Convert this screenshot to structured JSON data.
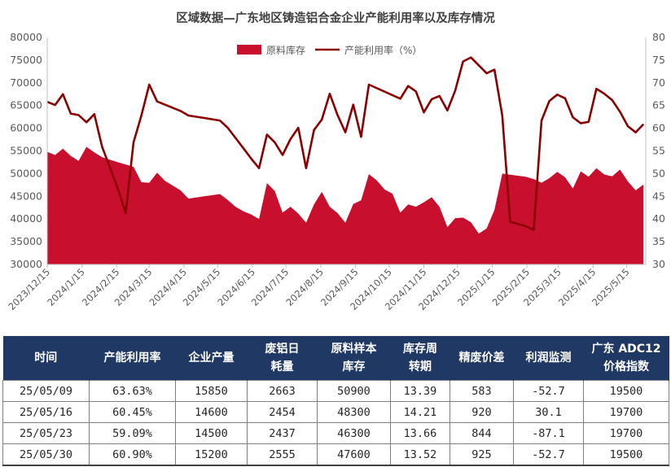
{
  "chart_data": {
    "type": "area+line",
    "title": "区域数据—广东地区铸造铝合金企业产能利用率以及库存情况",
    "legend": [
      "原料库存",
      "产能利用率（%）"
    ],
    "legend_position": "top-center",
    "colors": {
      "area": "#c8102e",
      "line": "#8b0000"
    },
    "y_left": {
      "min": 30000,
      "max": 80000,
      "step": 5000,
      "ticks": [
        "30000",
        "35000",
        "40000",
        "45000",
        "50000",
        "55000",
        "60000",
        "65000",
        "70000",
        "75000",
        "80000"
      ]
    },
    "y_right": {
      "min": 30,
      "max": 80,
      "step": 5,
      "ticks": [
        "30",
        "35",
        "40",
        "45",
        "50",
        "55",
        "60",
        "65",
        "70",
        "75",
        "80"
      ]
    },
    "x_ticks": [
      "2023/12/15",
      "2024/1/15",
      "2024/2/15",
      "2024/3/15",
      "2024/4/15",
      "2024/5/15",
      "2024/6/15",
      "2024/7/15",
      "2024/8/15",
      "2024/9/15",
      "2024/10/15",
      "2024/11/15",
      "2024/12/15",
      "2025/1/15",
      "2025/2/15",
      "2025/3/15",
      "2025/4/15",
      "2025/5/15"
    ],
    "x_range": [
      "2023/12/15",
      "2025/6/01"
    ],
    "series": [
      {
        "name": "原料库存",
        "kind": "area",
        "points": [
          [
            "2023-12-15",
            54800
          ],
          [
            "2023-12-22",
            54100
          ],
          [
            "2023-12-29",
            55500
          ],
          [
            "2024-01-05",
            53900
          ],
          [
            "2024-01-12",
            52800
          ],
          [
            "2024-01-19",
            55900
          ],
          [
            "2024-01-26",
            54700
          ],
          [
            "2024-02-02",
            53600
          ],
          [
            "2024-02-16",
            52500
          ],
          [
            "2024-03-01",
            51500
          ],
          [
            "2024-03-08",
            48100
          ],
          [
            "2024-03-15",
            48000
          ],
          [
            "2024-03-22",
            50200
          ],
          [
            "2024-03-29",
            48400
          ],
          [
            "2024-04-12",
            46300
          ],
          [
            "2024-04-19",
            44500
          ],
          [
            "2024-05-17",
            45500
          ],
          [
            "2024-05-24",
            44200
          ],
          [
            "2024-05-31",
            42700
          ],
          [
            "2024-06-07",
            41700
          ],
          [
            "2024-06-14",
            41000
          ],
          [
            "2024-06-21",
            40000
          ],
          [
            "2024-06-28",
            47900
          ],
          [
            "2024-07-05",
            46200
          ],
          [
            "2024-07-12",
            41400
          ],
          [
            "2024-07-19",
            42700
          ],
          [
            "2024-07-26",
            41200
          ],
          [
            "2024-08-02",
            39200
          ],
          [
            "2024-08-09",
            43200
          ],
          [
            "2024-08-16",
            46000
          ],
          [
            "2024-08-23",
            42700
          ],
          [
            "2024-08-30",
            41300
          ],
          [
            "2024-09-06",
            39200
          ],
          [
            "2024-09-13",
            43300
          ],
          [
            "2024-09-20",
            44100
          ],
          [
            "2024-09-27",
            49900
          ],
          [
            "2024-10-04",
            48500
          ],
          [
            "2024-10-11",
            46500
          ],
          [
            "2024-10-18",
            45600
          ],
          [
            "2024-10-25",
            41400
          ],
          [
            "2024-11-01",
            43200
          ],
          [
            "2024-11-08",
            42700
          ],
          [
            "2024-11-15",
            43700
          ],
          [
            "2024-11-22",
            44800
          ],
          [
            "2024-11-29",
            42700
          ],
          [
            "2024-12-06",
            38200
          ],
          [
            "2024-12-13",
            40200
          ],
          [
            "2024-12-20",
            40300
          ],
          [
            "2024-12-27",
            39300
          ],
          [
            "2025-01-03",
            36800
          ],
          [
            "2025-01-10",
            37900
          ],
          [
            "2025-01-17",
            42000
          ],
          [
            "2025-01-24",
            50000
          ],
          [
            "2025-02-14",
            49300
          ],
          [
            "2025-02-21",
            48800
          ],
          [
            "2025-02-28",
            48000
          ],
          [
            "2025-03-07",
            49000
          ],
          [
            "2025-03-14",
            50400
          ],
          [
            "2025-03-21",
            49200
          ],
          [
            "2025-03-28",
            46700
          ],
          [
            "2025-04-04",
            50500
          ],
          [
            "2025-04-11",
            49300
          ],
          [
            "2025-04-18",
            51200
          ],
          [
            "2025-04-25",
            49800
          ],
          [
            "2025-05-02",
            49400
          ],
          [
            "2025-05-09",
            50900
          ],
          [
            "2025-05-16",
            48300
          ],
          [
            "2025-05-23",
            46300
          ],
          [
            "2025-05-30",
            47600
          ]
        ]
      },
      {
        "name": "产能利用率（%）",
        "kind": "line",
        "points": [
          [
            "2023-12-15",
            65.8
          ],
          [
            "2023-12-22",
            65.1
          ],
          [
            "2023-12-29",
            67.5
          ],
          [
            "2024-01-05",
            63.2
          ],
          [
            "2024-01-12",
            62.9
          ],
          [
            "2024-01-19",
            61.3
          ],
          [
            "2024-01-26",
            63.1
          ],
          [
            "2024-02-02",
            55.9
          ],
          [
            "2024-02-09",
            51.3
          ],
          [
            "2024-02-16",
            46.7
          ],
          [
            "2024-02-23",
            41.3
          ],
          [
            "2024-03-01",
            56.9
          ],
          [
            "2024-03-08",
            62.8
          ],
          [
            "2024-03-15",
            69.6
          ],
          [
            "2024-03-22",
            65.9
          ],
          [
            "2024-04-12",
            63.8
          ],
          [
            "2024-04-19",
            62.8
          ],
          [
            "2024-05-17",
            61.7
          ],
          [
            "2024-05-24",
            60.1
          ],
          [
            "2024-06-07",
            55.6
          ],
          [
            "2024-06-14",
            53.3
          ],
          [
            "2024-06-21",
            51.2
          ],
          [
            "2024-06-28",
            58.6
          ],
          [
            "2024-07-05",
            56.9
          ],
          [
            "2024-07-12",
            54.1
          ],
          [
            "2024-07-19",
            57.6
          ],
          [
            "2024-07-26",
            60.1
          ],
          [
            "2024-08-02",
            51.2
          ],
          [
            "2024-08-09",
            59.6
          ],
          [
            "2024-08-16",
            61.9
          ],
          [
            "2024-08-23",
            67.6
          ],
          [
            "2024-08-30",
            62.9
          ],
          [
            "2024-09-06",
            59.1
          ],
          [
            "2024-09-13",
            65.2
          ],
          [
            "2024-09-20",
            58.1
          ],
          [
            "2024-09-27",
            69.6
          ],
          [
            "2024-10-25",
            66.5
          ],
          [
            "2024-11-01",
            69.3
          ],
          [
            "2024-11-08",
            68.1
          ],
          [
            "2024-11-15",
            63.5
          ],
          [
            "2024-11-22",
            66.4
          ],
          [
            "2024-11-29",
            67.1
          ],
          [
            "2024-12-06",
            63.9
          ],
          [
            "2024-12-13",
            68.3
          ],
          [
            "2024-12-20",
            74.7
          ],
          [
            "2024-12-27",
            75.6
          ],
          [
            "2025-01-10",
            72.1
          ],
          [
            "2025-01-17",
            72.9
          ],
          [
            "2025-01-24",
            62.8
          ],
          [
            "2025-01-31",
            39.4
          ],
          [
            "2025-02-14",
            38.4
          ],
          [
            "2025-02-21",
            37.6
          ],
          [
            "2025-02-28",
            61.7
          ],
          [
            "2025-03-07",
            66.0
          ],
          [
            "2025-03-14",
            67.4
          ],
          [
            "2025-03-21",
            66.6
          ],
          [
            "2025-03-28",
            62.4
          ],
          [
            "2025-04-04",
            61.1
          ],
          [
            "2025-04-11",
            61.4
          ],
          [
            "2025-04-18",
            68.7
          ],
          [
            "2025-04-25",
            67.6
          ],
          [
            "2025-05-02",
            66.2
          ],
          [
            "2025-05-09",
            63.63
          ],
          [
            "2025-05-16",
            60.45
          ],
          [
            "2025-05-23",
            59.09
          ],
          [
            "2025-05-30",
            60.9
          ]
        ]
      }
    ]
  },
  "table": {
    "headers": [
      [
        "时间"
      ],
      [
        "产能利用率"
      ],
      [
        "企业产量"
      ],
      [
        "废铝日",
        "耗量"
      ],
      [
        "原料样本",
        "库存"
      ],
      [
        "库存周",
        "转期"
      ],
      [
        "精废价差"
      ],
      [
        "利润监测"
      ],
      [
        "广东 ADC12",
        "价格指数"
      ]
    ],
    "rows": [
      [
        "25/05/09",
        "63.63%",
        "15850",
        "2663",
        "50900",
        "13.39",
        "583",
        "-52.7",
        "19500"
      ],
      [
        "25/05/16",
        "60.45%",
        "14600",
        "2454",
        "48300",
        "14.21",
        "920",
        "30.1",
        "19700"
      ],
      [
        "25/05/23",
        "59.09%",
        "14500",
        "2437",
        "46300",
        "13.66",
        "844",
        "-87.1",
        "19700"
      ],
      [
        "25/05/30",
        "60.90%",
        "15200",
        "2555",
        "47600",
        "13.52",
        "925",
        "-52.7",
        "19500"
      ]
    ]
  }
}
